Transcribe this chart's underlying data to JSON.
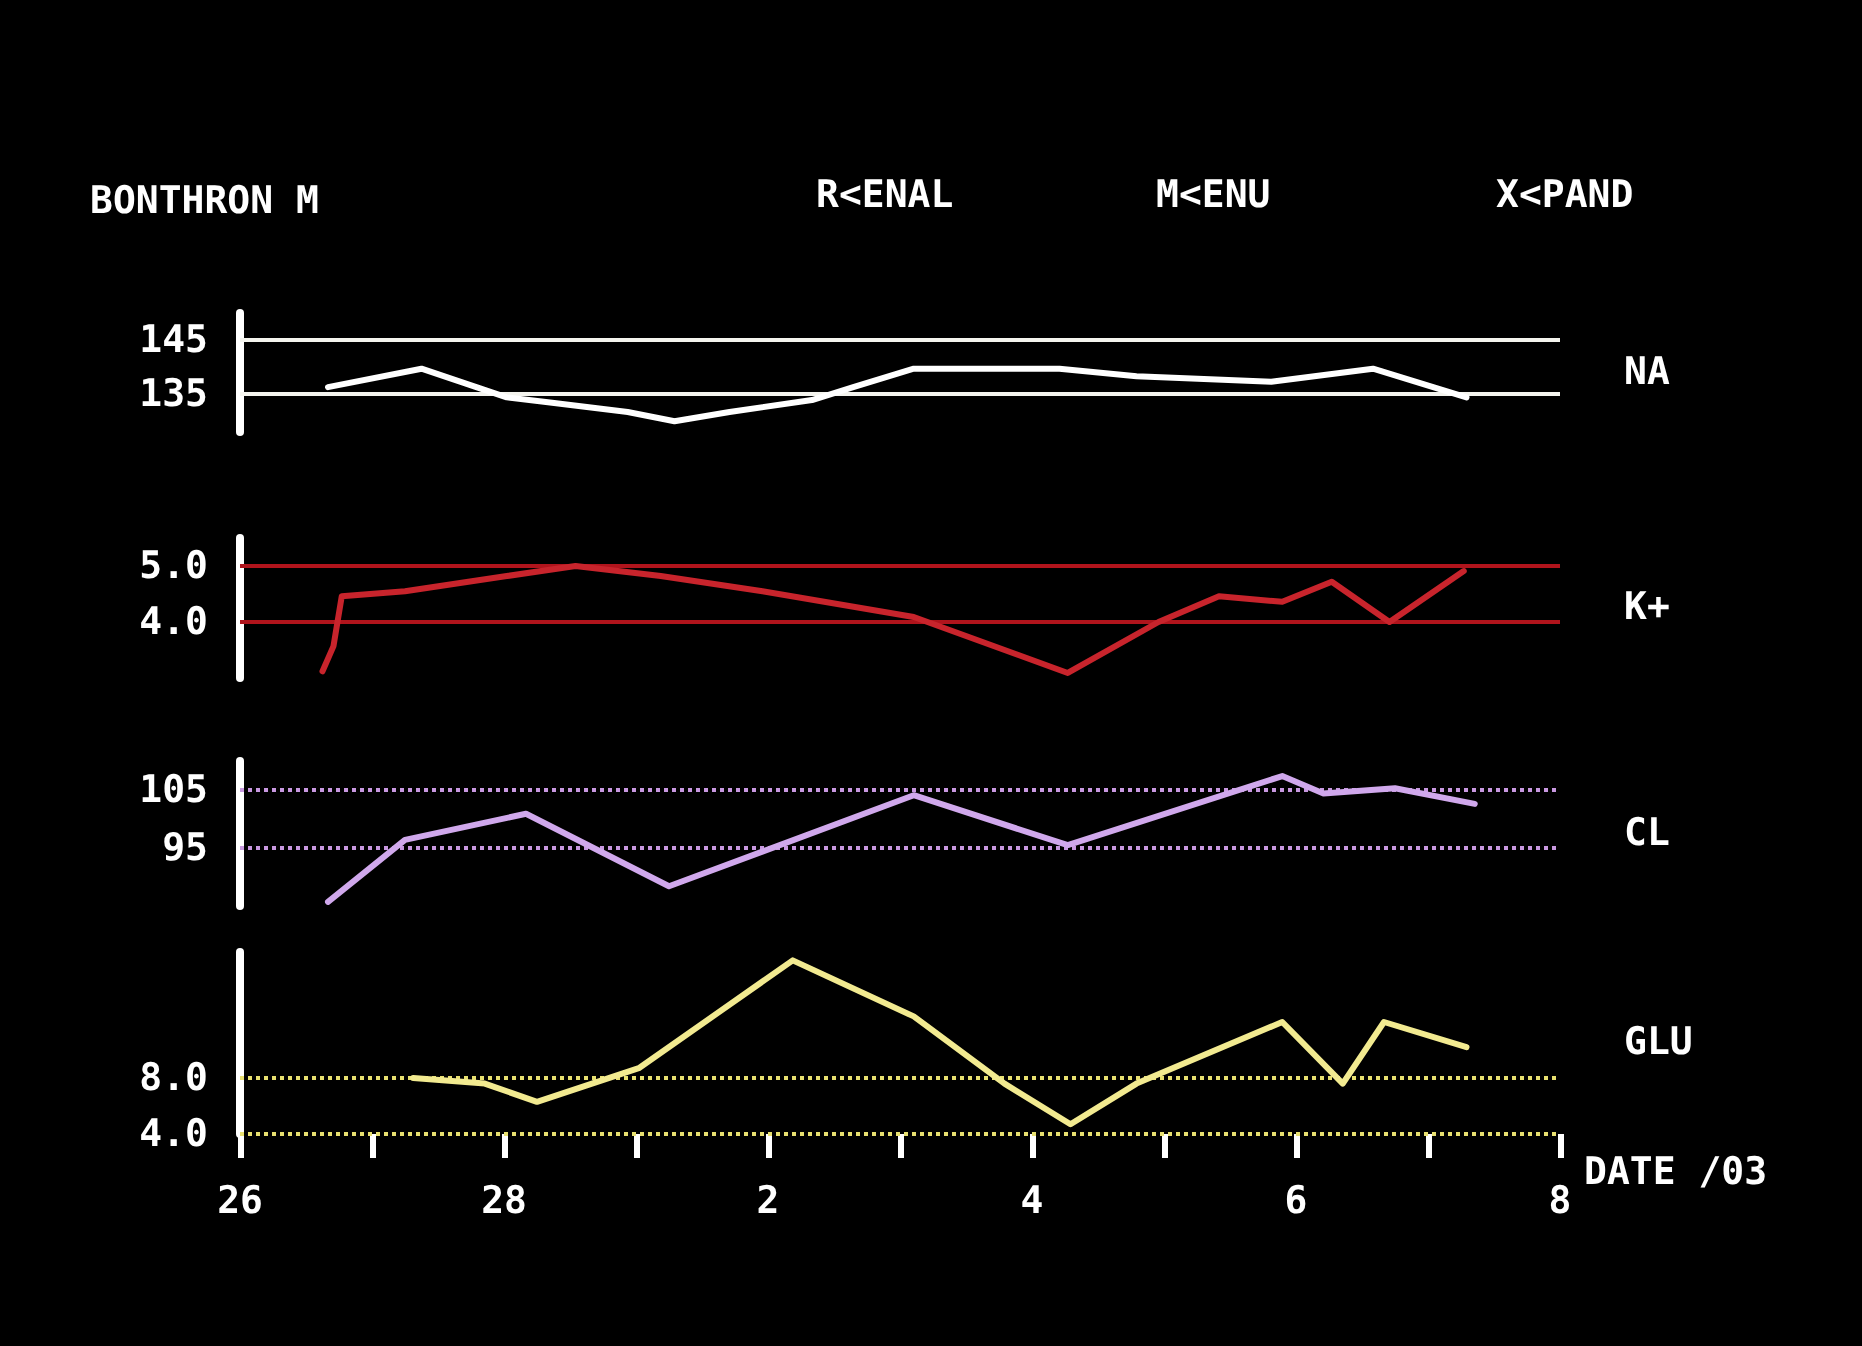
{
  "chart_data": [
    {
      "type": "line",
      "title": "BONTHRON M",
      "annotations": [
        "R<ENAL",
        "M<ENU",
        "X<PAND"
      ],
      "ylabel": "NA",
      "marker": "none",
      "tick_labels": "y",
      "xlim": [
        "--02-26",
        "--03-08"
      ],
      "ylim": [
        128,
        150
      ],
      "yticks": [
        135,
        145
      ],
      "ref_lines": [
        {
          "axis": "y",
          "value": 145,
          "color": "#f4f4ee",
          "line_style": "solid"
        },
        {
          "axis": "y",
          "value": 135,
          "color": "#f4f4ee",
          "line_style": "solid"
        }
      ],
      "series": [
        {
          "color": "#ffffff",
          "x": [
            "--02-26T16:00",
            "--02-27T09:00",
            "--02-28T00:30",
            "--02-28T08:00",
            "--02-28T22:30",
            "--03-01T07:00",
            "--03-01T17:00",
            "--03-02T08:00",
            "--03-02T15:30",
            "--03-03T02:30",
            "--03-04T05:00",
            "--03-04T19:00",
            "--03-05T19:30",
            "--03-06T14:00",
            "--03-07T07:00"
          ],
          "values": [
            136.3,
            139.7,
            134.4,
            133.5,
            131.7,
            130,
            131.7,
            133.9,
            136.3,
            139.7,
            139.7,
            138.3,
            137.3,
            139.7,
            134.4
          ]
        }
      ]
    },
    {
      "type": "line",
      "ylabel": "K+",
      "marker": "none",
      "tick_labels": "y",
      "xlim": [
        "--02-26",
        "--03-08"
      ],
      "ylim": [
        3.0,
        5.5
      ],
      "yticks": [
        {
          "value": 4,
          "label": "4.0"
        },
        {
          "value": 5,
          "label": "5.0"
        }
      ],
      "ref_lines": [
        {
          "axis": "y",
          "value": 5,
          "color": "#b0141c",
          "line_style": "solid"
        },
        {
          "axis": "y",
          "value": 4,
          "color": "#b0141c",
          "line_style": "solid"
        }
      ],
      "series": [
        {
          "color": "#c8242c",
          "x": [
            "--02-26T15:00",
            "--02-26T17:00",
            "--02-26T18:30",
            "--02-27T06:00",
            "--02-28T00:30",
            "--02-28T13:00",
            "--03-01T04:30",
            "--03-01T23:00",
            "--03-03T02:30",
            "--03-04T06:30",
            "--03-04T23:00",
            "--03-05T10:00",
            "--03-05T21:30",
            "--03-06T06:30",
            "--03-06T17:00",
            "--03-07T06:30"
          ],
          "values": [
            3.12,
            3.57,
            4.46,
            4.55,
            4.82,
            5.0,
            4.82,
            4.55,
            4.09,
            3.09,
            4.0,
            4.46,
            4.36,
            4.72,
            4.0,
            4.91
          ]
        }
      ]
    },
    {
      "type": "line",
      "ylabel": "CL",
      "marker": "none",
      "tick_labels": "y",
      "xlim": [
        "--02-26",
        "--03-08"
      ],
      "ylim": [
        85,
        110
      ],
      "yticks": [
        95,
        105
      ],
      "ref_lines": [
        {
          "axis": "y",
          "value": 105,
          "color": "#c898e0",
          "line_style": "dotted"
        },
        {
          "axis": "y",
          "value": 95,
          "color": "#c898e0",
          "line_style": "dotted"
        }
      ],
      "series": [
        {
          "color": "#d0a8ec",
          "x": [
            "--02-26T16:00",
            "--02-27T06:00",
            "--02-28T04:00",
            "--03-01T06:00",
            "--03-03T02:30",
            "--03-04T06:30",
            "--03-05T21:30",
            "--03-06T05:00",
            "--03-06T18:00",
            "--03-07T08:30"
          ],
          "values": [
            85.7,
            96.4,
            100.9,
            88.4,
            104.1,
            95.5,
            107.4,
            104.4,
            105.3,
            102.6
          ]
        }
      ]
    },
    {
      "type": "line",
      "ylabel": "GLU",
      "xlabel": "DATE /03",
      "marker": "none",
      "xlim": [
        "--02-26",
        "--03-08"
      ],
      "xticks": [
        {
          "value": "--02-26",
          "label": "26"
        },
        {
          "value": "--02-27",
          "label": null
        },
        {
          "value": "--02-28",
          "label": "28"
        },
        {
          "value": "--03-01",
          "label": null
        },
        {
          "value": "--03-02",
          "label": "2"
        },
        {
          "value": "--03-03",
          "label": null
        },
        {
          "value": "--03-04",
          "label": "4"
        },
        {
          "value": "--03-05",
          "label": null
        },
        {
          "value": "--03-06",
          "label": "6"
        },
        {
          "value": "--03-07",
          "label": null
        },
        {
          "value": "--03-08",
          "label": "8"
        }
      ],
      "ylim": [
        4,
        17
      ],
      "yticks": [
        {
          "value": 4,
          "label": "4.0"
        },
        {
          "value": 8,
          "label": "8.0"
        }
      ],
      "ref_lines": [
        {
          "axis": "y",
          "value": 8,
          "color": "#e8e070",
          "line_style": "dotted"
        },
        {
          "axis": "y",
          "value": 4,
          "color": "#e8e070",
          "line_style": "dotted"
        }
      ],
      "series": [
        {
          "color": "#f2ea90",
          "x": [
            "--02-27T07:30",
            "--02-27T20:30",
            "--02-28T06:00",
            "--03-01T00:30",
            "--03-02T04:30",
            "--03-03T02:30",
            "--03-03T19:00",
            "--03-04T07:00",
            "--03-04T19:00",
            "--03-05T21:30",
            "--03-06T08:30",
            "--03-06T16:00",
            "--03-07T07:00"
          ],
          "values": [
            8.0,
            7.6,
            6.3,
            8.7,
            16.4,
            12.4,
            7.6,
            4.7,
            7.6,
            12.0,
            7.6,
            12.0,
            10.2
          ]
        }
      ]
    }
  ]
}
